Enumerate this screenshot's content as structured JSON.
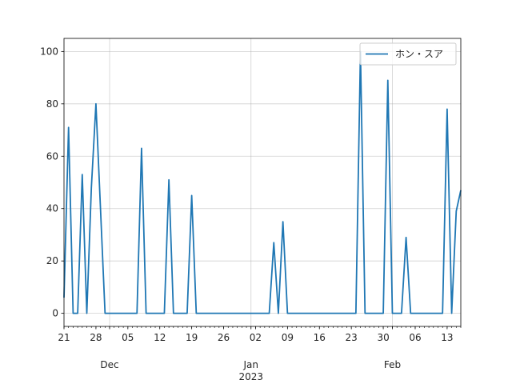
{
  "chart_data": {
    "type": "line",
    "title": "",
    "xlabel": "",
    "ylabel": "",
    "x_start": "2022-11-21",
    "x_end": "2023-02-16",
    "ylim": [
      -5,
      105
    ],
    "grid": true,
    "legend_placement": "top-right",
    "line_color": "#1f77b4",
    "series": [
      {
        "name": "ホン・スア",
        "points": [
          [
            "2022-11-21",
            6
          ],
          [
            "2022-11-22",
            71
          ],
          [
            "2022-11-23",
            0
          ],
          [
            "2022-11-24",
            0
          ],
          [
            "2022-11-25",
            53
          ],
          [
            "2022-11-26",
            0
          ],
          [
            "2022-11-27",
            48
          ],
          [
            "2022-11-28",
            80
          ],
          [
            "2022-11-29",
            40
          ],
          [
            "2022-11-30",
            0
          ],
          [
            "2022-12-07",
            0
          ],
          [
            "2022-12-08",
            63
          ],
          [
            "2022-12-09",
            0
          ],
          [
            "2022-12-13",
            0
          ],
          [
            "2022-12-14",
            51
          ],
          [
            "2022-12-15",
            0
          ],
          [
            "2022-12-18",
            0
          ],
          [
            "2022-12-19",
            45
          ],
          [
            "2022-12-20",
            0
          ],
          [
            "2023-01-05",
            0
          ],
          [
            "2023-01-06",
            27
          ],
          [
            "2023-01-07",
            0
          ],
          [
            "2023-01-08",
            35
          ],
          [
            "2023-01-09",
            0
          ],
          [
            "2023-01-24",
            0
          ],
          [
            "2023-01-25",
            100
          ],
          [
            "2023-01-26",
            0
          ],
          [
            "2023-01-30",
            0
          ],
          [
            "2023-01-31",
            89
          ],
          [
            "2023-02-01",
            0
          ],
          [
            "2023-02-03",
            0
          ],
          [
            "2023-02-04",
            29
          ],
          [
            "2023-02-05",
            0
          ],
          [
            "2023-02-12",
            0
          ],
          [
            "2023-02-13",
            78
          ],
          [
            "2023-02-14",
            0
          ],
          [
            "2023-02-15",
            39
          ],
          [
            "2023-02-16",
            47
          ]
        ]
      }
    ],
    "x_major_ticks": [
      {
        "date": "2022-11-21",
        "label": "21"
      },
      {
        "date": "2022-11-28",
        "label": "28"
      },
      {
        "date": "2022-12-05",
        "label": "05"
      },
      {
        "date": "2022-12-12",
        "label": "12"
      },
      {
        "date": "2022-12-19",
        "label": "19"
      },
      {
        "date": "2022-12-26",
        "label": "26"
      },
      {
        "date": "2023-01-02",
        "label": "02"
      },
      {
        "date": "2023-01-09",
        "label": "09"
      },
      {
        "date": "2023-01-16",
        "label": "16"
      },
      {
        "date": "2023-01-23",
        "label": "23"
      },
      {
        "date": "2023-01-30",
        "label": "30"
      },
      {
        "date": "2023-02-06",
        "label": "06"
      },
      {
        "date": "2023-02-13",
        "label": "13"
      }
    ],
    "x_month_labels": [
      {
        "date": "2022-12-01",
        "label": "Dec"
      },
      {
        "date": "2023-01-01",
        "label": "Jan"
      },
      {
        "date": "2023-02-01",
        "label": "Feb"
      }
    ],
    "x_year_label": {
      "date": "2023-01-01",
      "label": "2023"
    },
    "y_ticks": [
      0,
      20,
      40,
      60,
      80,
      100
    ]
  }
}
